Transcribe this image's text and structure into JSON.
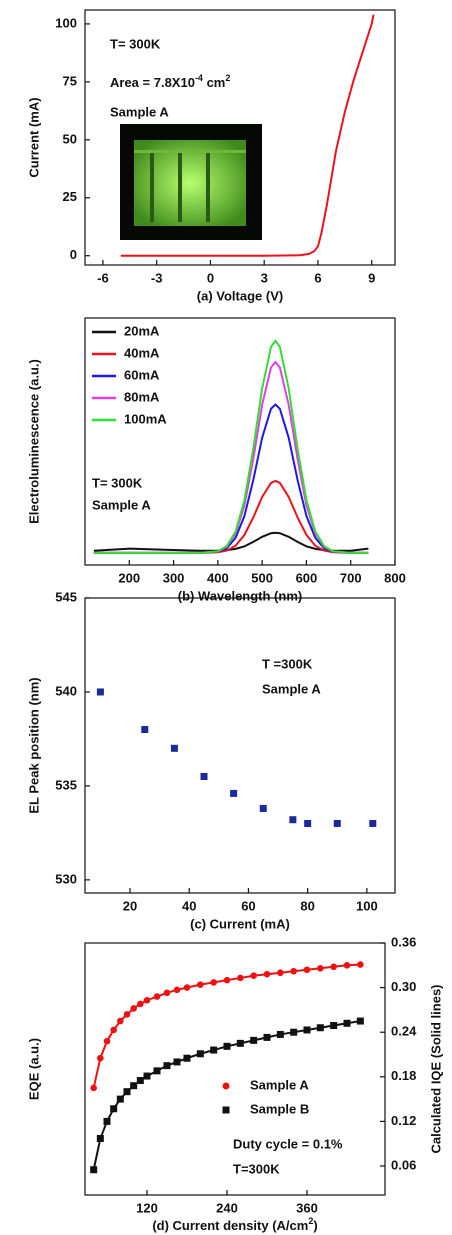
{
  "chart_data": [
    {
      "type": "line",
      "xlabel": "(a) Voltage (V)",
      "ylabel": "Current (mA)",
      "annotations": [
        "T= 300K",
        [
          {
            "text": "Area = 7.8X10"
          },
          {
            "sup": "-4"
          },
          {
            "text": " cm"
          },
          {
            "sup": "2"
          }
        ],
        "Sample A"
      ],
      "x": [
        -5,
        -3,
        -1,
        1,
        3,
        5,
        5.5,
        5.8,
        6,
        6.2,
        6.5,
        7,
        7.5,
        8,
        8.5,
        9,
        9.1
      ],
      "values": [
        0,
        0,
        0,
        0,
        0,
        0.2,
        0.8,
        2,
        4,
        10,
        22,
        45,
        62,
        76,
        88,
        100,
        104
      ],
      "color": "#e8141c",
      "xlim": [
        -7,
        10.3
      ],
      "xticks": [
        -6,
        -3,
        0,
        3,
        6,
        9
      ],
      "ylim": [
        -4,
        106
      ],
      "yticks": [
        0,
        25,
        50,
        75,
        100
      ]
    },
    {
      "type": "line",
      "xlabel": "(b)  Wavelength (nm)",
      "ylabel": "Electroluminescence (a.u.)",
      "annotations": [
        "T= 300K",
        "Sample A"
      ],
      "x": [
        120,
        200,
        280,
        360,
        400,
        420,
        440,
        460,
        480,
        500,
        520,
        530,
        540,
        560,
        580,
        600,
        620,
        640,
        660,
        700,
        740
      ],
      "series": [
        {
          "name": "20mA",
          "color": "#111111",
          "values": [
            0.02,
            0.03,
            0.025,
            0.02,
            0.021,
            0.023,
            0.029,
            0.041,
            0.062,
            0.086,
            0.103,
            0.105,
            0.103,
            0.086,
            0.062,
            0.041,
            0.029,
            0.023,
            0.021,
            0.02,
            0.03
          ]
        },
        {
          "name": "40mA",
          "color": "#e8141c",
          "values": [
            0.01,
            0.01,
            0.01,
            0.01,
            0.013,
            0.021,
            0.044,
            0.095,
            0.177,
            0.274,
            0.34,
            0.35,
            0.34,
            0.274,
            0.177,
            0.095,
            0.044,
            0.021,
            0.013,
            0.01,
            0.01
          ]
        },
        {
          "name": "60mA",
          "color": "#1a1ae6",
          "values": [
            0.01,
            0.01,
            0.01,
            0.01,
            0.016,
            0.032,
            0.081,
            0.184,
            0.354,
            0.553,
            0.69,
            0.71,
            0.69,
            0.553,
            0.354,
            0.184,
            0.081,
            0.032,
            0.016,
            0.01,
            0.01
          ]
        },
        {
          "name": "80mA",
          "color": "#e040e0",
          "values": [
            0.01,
            0.01,
            0.01,
            0.01,
            0.017,
            0.039,
            0.101,
            0.234,
            0.453,
            0.708,
            0.885,
            0.91,
            0.885,
            0.708,
            0.453,
            0.234,
            0.101,
            0.039,
            0.017,
            0.01,
            0.01
          ]
        },
        {
          "name": "100mA",
          "color": "#33dd33",
          "values": [
            0.01,
            0.01,
            0.01,
            0.01,
            0.018,
            0.042,
            0.111,
            0.259,
            0.502,
            0.785,
            0.982,
            1.01,
            0.982,
            0.785,
            0.502,
            0.259,
            0.111,
            0.042,
            0.018,
            0.01,
            0.01
          ]
        }
      ],
      "xlim": [
        100,
        800
      ],
      "xticks": [
        200,
        300,
        400,
        500,
        600,
        700,
        800
      ],
      "ylim": [
        -0.047,
        1.118
      ]
    },
    {
      "type": "scatter",
      "xlabel": "(c)  Current (mA)",
      "ylabel": "EL Peak position (nm)",
      "annotations": [
        "T =300K",
        "Sample A"
      ],
      "x": [
        10,
        25,
        35,
        45,
        55,
        65,
        75,
        80,
        90,
        102
      ],
      "values": [
        540,
        538,
        537,
        535.5,
        534.6,
        533.8,
        533.2,
        533,
        533,
        533
      ],
      "color": "#1a2a9a",
      "marker": "square",
      "xlim": [
        4.8,
        109.5
      ],
      "xticks": [
        20,
        40,
        60,
        80,
        100
      ],
      "ylim": [
        529.3,
        545
      ],
      "yticks": [
        530,
        535,
        540,
        545
      ]
    },
    {
      "type": "line",
      "xlabel": [
        {
          "text": "(d) Current density (A/cm"
        },
        {
          "sup": "2"
        },
        {
          "text": ")"
        }
      ],
      "ylabel": "EQE (a.u.)",
      "y2label": "Calculated IQE (Solid lines)",
      "annotations": [
        "Duty cycle = 0.1%",
        "T=300K"
      ],
      "x": [
        40,
        50,
        60,
        70,
        80,
        90,
        100,
        110,
        120,
        135,
        150,
        165,
        180,
        200,
        220,
        240,
        260,
        280,
        300,
        320,
        340,
        360,
        380,
        400,
        420,
        440
      ],
      "series": [
        {
          "name": "Sample A",
          "color": "#ee1111",
          "marker": "circle",
          "axis": "y2",
          "values": [
            0.165,
            0.205,
            0.228,
            0.243,
            0.255,
            0.264,
            0.272,
            0.278,
            0.283,
            0.288,
            0.293,
            0.297,
            0.3,
            0.304,
            0.307,
            0.31,
            0.313,
            0.316,
            0.318,
            0.32,
            0.322,
            0.324,
            0.326,
            0.328,
            0.33,
            0.331
          ]
        },
        {
          "name": "Sample B",
          "color": "#111111",
          "marker": "square",
          "axis": "y2",
          "values": [
            0.055,
            0.097,
            0.12,
            0.137,
            0.15,
            0.16,
            0.168,
            0.175,
            0.181,
            0.188,
            0.195,
            0.2,
            0.205,
            0.211,
            0.216,
            0.221,
            0.225,
            0.229,
            0.233,
            0.237,
            0.24,
            0.243,
            0.246,
            0.249,
            0.252,
            0.255
          ]
        }
      ],
      "xlim": [
        27,
        477
      ],
      "xticks": [
        120,
        240,
        360
      ],
      "y2lim": [
        0.021,
        0.36
      ],
      "y2ticks": [
        0.06,
        0.12,
        0.18,
        0.24,
        {
          "value": 0.3,
          "label": "0.30"
        },
        0.36
      ]
    }
  ]
}
